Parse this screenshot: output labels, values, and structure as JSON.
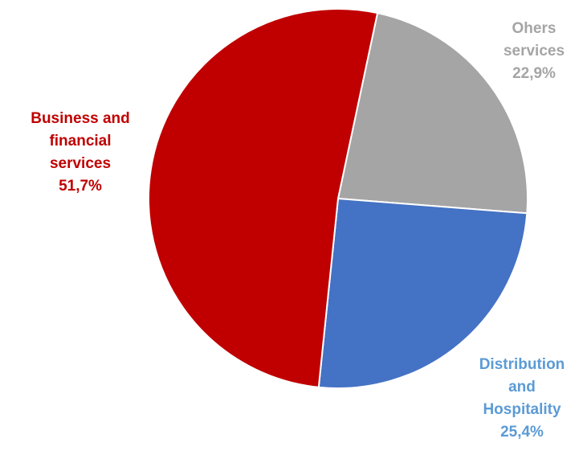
{
  "chart_data": {
    "type": "pie",
    "title": "",
    "start_angle_deg": 12,
    "slices": [
      {
        "key": "others",
        "label_lines": [
          "Ohers",
          "services"
        ],
        "value": 22.9,
        "value_label": "22,9%",
        "color": "#a5a5a5",
        "label_color": "#a5a5a5"
      },
      {
        "key": "distribution",
        "label_lines": [
          "Distribution",
          "and",
          "Hospitality"
        ],
        "value": 25.4,
        "value_label": "25,4%",
        "color": "#4472c4",
        "label_color": "#5b9bd5"
      },
      {
        "key": "business",
        "label_lines": [
          "Business and",
          "financial",
          "services"
        ],
        "value": 51.7,
        "value_label": "51,7%",
        "color": "#c00000",
        "label_color": "#c00000"
      }
    ]
  }
}
